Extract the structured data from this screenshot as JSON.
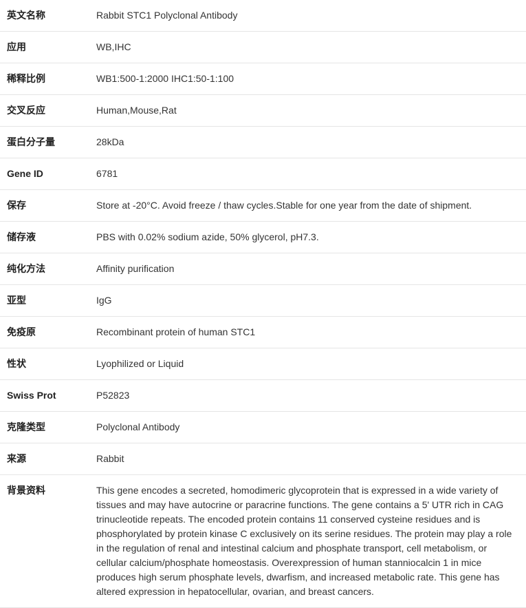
{
  "table": {
    "border_color": "#e5e5e5",
    "label_color": "#222222",
    "value_color": "#333333",
    "font_size": 14,
    "label_width": 130,
    "row_padding_v": 12,
    "row_padding_h": 10
  },
  "rows": [
    {
      "label": "英文名称",
      "value": "Rabbit STC1 Polyclonal Antibody"
    },
    {
      "label": "应用",
      "value": "WB,IHC"
    },
    {
      "label": "稀释比例",
      "value": "WB1:500-1:2000 IHC1:50-1:100"
    },
    {
      "label": "交叉反应",
      "value": "Human,Mouse,Rat"
    },
    {
      "label": "蛋白分子量",
      "value": "28kDa"
    },
    {
      "label": "Gene ID",
      "value": "6781"
    },
    {
      "label": "保存",
      "value": "Store at -20°C. Avoid freeze / thaw cycles.Stable for one year from the date of shipment."
    },
    {
      "label": "储存液",
      "value": "PBS with 0.02% sodium azide, 50% glycerol, pH7.3."
    },
    {
      "label": "纯化方法",
      "value": "Affinity purification"
    },
    {
      "label": "亚型",
      "value": "IgG"
    },
    {
      "label": "免疫原",
      "value": "Recombinant protein of human STC1"
    },
    {
      "label": "性状",
      "value": "Lyophilized or Liquid"
    },
    {
      "label": "Swiss Prot",
      "value": "P52823"
    },
    {
      "label": "克隆类型",
      "value": "Polyclonal Antibody"
    },
    {
      "label": "来源",
      "value": "Rabbit"
    },
    {
      "label": "背景资料",
      "value": "This gene encodes a secreted, homodimeric glycoprotein that is expressed in a wide variety of tissues and may have autocrine or paracrine functions. The gene contains a 5' UTR rich in CAG trinucleotide repeats. The encoded protein contains 11 conserved cysteine residues and is phosphorylated by protein kinase C exclusively on its serine residues. The protein may play a role in the regulation of renal and intestinal calcium and phosphate transport, cell metabolism, or cellular calcium/phosphate homeostasis. Overexpression of human stanniocalcin 1 in mice produces high serum phosphate levels, dwarfism, and increased metabolic rate. This gene has altered expression in hepatocellular, ovarian, and breast cancers."
    }
  ]
}
